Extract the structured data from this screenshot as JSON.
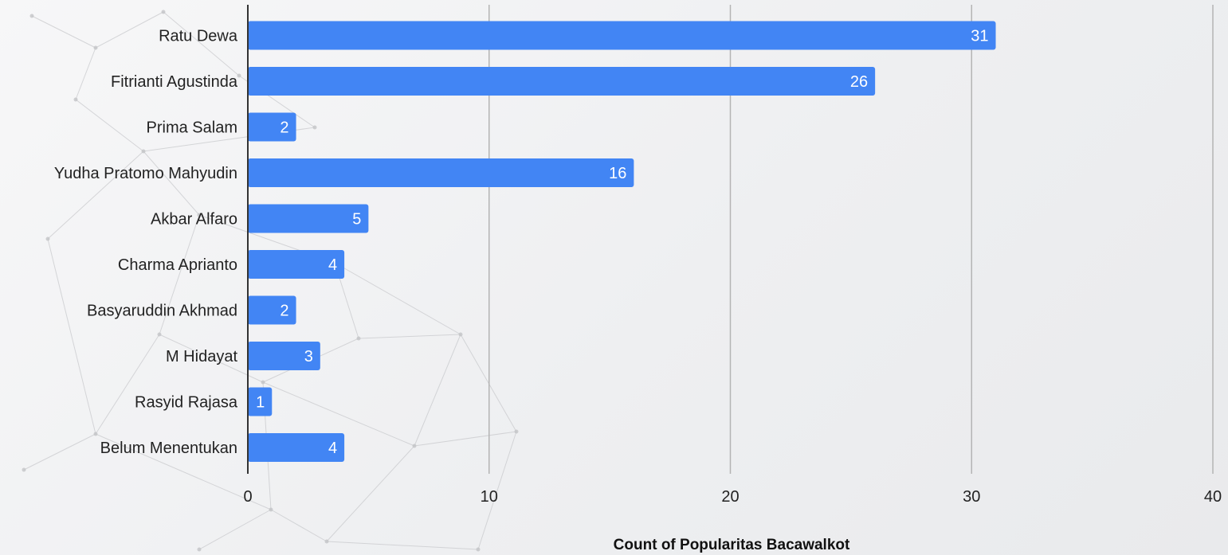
{
  "chart_data": {
    "type": "bar",
    "orientation": "horizontal",
    "categories": [
      "Ratu Dewa",
      "Fitrianti Agustinda",
      "Prima Salam",
      "Yudha Pratomo Mahyudin",
      "Akbar Alfaro",
      "Charma Aprianto",
      "Basyaruddin Akhmad",
      "M Hidayat",
      "Rasyid Rajasa",
      "Belum Menentukan"
    ],
    "values": [
      31,
      26,
      2,
      16,
      5,
      4,
      2,
      3,
      1,
      4
    ],
    "xlabel": "Count of Popularitas Bacawalkot",
    "ylabel": "",
    "xlim": [
      0,
      40
    ],
    "xticks": [
      0,
      10,
      20,
      30,
      40
    ],
    "grid": true,
    "bar_color": "#4285f4",
    "legend": "none"
  }
}
